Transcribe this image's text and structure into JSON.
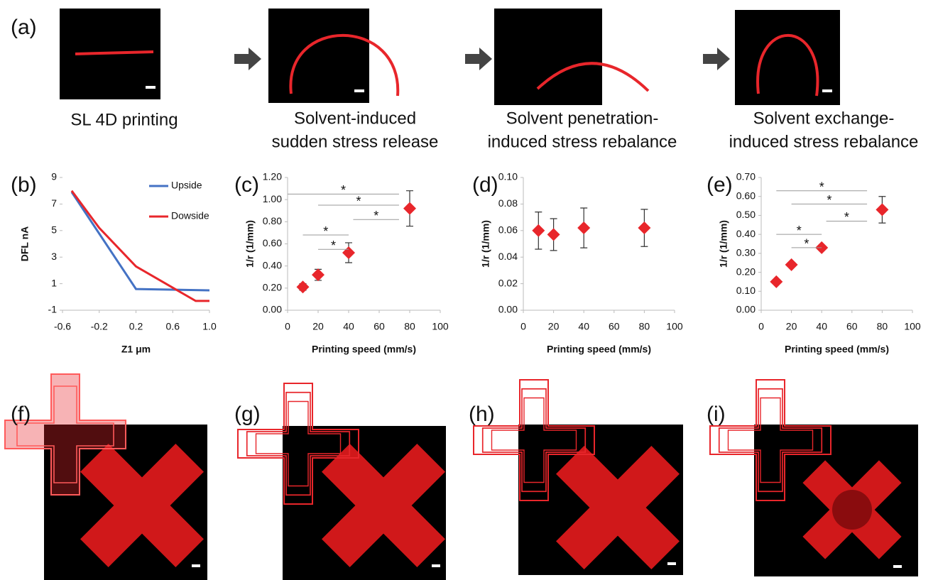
{
  "panel_labels": [
    "(a)",
    "(b)",
    "(c)",
    "(d)",
    "(e)",
    "(f)",
    "(g)",
    "(h)",
    "(i)"
  ],
  "captions": [
    [
      "SL 4D printing"
    ],
    [
      "Solvent-induced",
      "sudden stress release"
    ],
    [
      "Solvent penetration-",
      "induced stress rebalance"
    ],
    [
      "Solvent exchange-",
      "induced stress rebalance"
    ]
  ],
  "chart_data": [
    {
      "type": "line",
      "x_label": "Z1 μm",
      "y_label": "DFL nA",
      "legend": "upper right",
      "xlim": [
        -0.6,
        1.0
      ],
      "xticks": [
        -0.6,
        -0.2,
        0.2,
        0.6,
        {
          "value": 1.0,
          "label": "1.0"
        }
      ],
      "ylim": [
        -1,
        9
      ],
      "yticks": [
        -1,
        1,
        3,
        5,
        7,
        9
      ],
      "series": [
        {
          "name": "Upside",
          "color": "#4472c4",
          "x": [
            -0.5,
            0.2,
            1.0
          ],
          "values": [
            7.9,
            0.6,
            0.5
          ]
        },
        {
          "name": "Dowside",
          "color": "#e8262b",
          "x": [
            -0.5,
            -0.2,
            0.2,
            0.85,
            1.0
          ],
          "values": [
            8.0,
            5.2,
            2.3,
            -0.3,
            -0.3
          ]
        }
      ]
    },
    {
      "type": "scatter",
      "x_label": "Printing speed (mm/s)",
      "y_label": "1/r (1/mm)",
      "color": "#e8262b",
      "x": [
        10,
        20,
        40,
        80
      ],
      "values": [
        0.21,
        0.32,
        0.52,
        0.92
      ],
      "errors": [
        0.03,
        0.05,
        0.09,
        0.16
      ],
      "xlim": [
        0,
        100
      ],
      "xticks": [
        0,
        20,
        40,
        60,
        80,
        100
      ],
      "ylim": [
        0,
        1.2
      ],
      "yticks": [
        {
          "value": 0,
          "label": "0.00"
        },
        {
          "value": 0.2,
          "label": "0.20"
        },
        {
          "value": 0.4,
          "label": "0.40"
        },
        {
          "value": 0.6,
          "label": "0.60"
        },
        {
          "value": 0.8,
          "label": "0.80"
        },
        {
          "value": 1.0,
          "label": "1.00"
        },
        {
          "value": 1.2,
          "label": "1.20"
        }
      ],
      "annotations": [
        {
          "x": [
            0,
            73
          ],
          "y": 1.05,
          "label": "*"
        },
        {
          "x": [
            20,
            73
          ],
          "y": 0.95,
          "label": "*"
        },
        {
          "x": [
            43,
            73
          ],
          "y": 0.82,
          "label": "*"
        },
        {
          "x": [
            10,
            40
          ],
          "y": 0.68,
          "label": "*"
        },
        {
          "x": [
            20,
            40
          ],
          "y": 0.55,
          "label": "*"
        }
      ]
    },
    {
      "type": "scatter",
      "x_label": "Printing speed (mm/s)",
      "y_label": "1/r (1/mm)",
      "color": "#e8262b",
      "x": [
        10,
        20,
        40,
        80
      ],
      "values": [
        0.06,
        0.057,
        0.062,
        0.062
      ],
      "errors": [
        0.014,
        0.012,
        0.015,
        0.014
      ],
      "xlim": [
        0,
        100
      ],
      "xticks": [
        0,
        20,
        40,
        60,
        80,
        100
      ],
      "ylim": [
        0,
        0.1
      ],
      "yticks": [
        {
          "value": 0,
          "label": "0.00"
        },
        {
          "value": 0.02,
          "label": "0.02"
        },
        {
          "value": 0.04,
          "label": "0.04"
        },
        {
          "value": 0.06,
          "label": "0.06"
        },
        {
          "value": 0.08,
          "label": "0.08"
        },
        {
          "value": 0.1,
          "label": "0.10"
        }
      ]
    },
    {
      "type": "scatter",
      "x_label": "Printing speed (mm/s)",
      "y_label": "1/r (1/mm)",
      "color": "#e8262b",
      "x": [
        10,
        20,
        40,
        80
      ],
      "values": [
        0.15,
        0.24,
        0.33,
        0.53
      ],
      "errors": [
        0.01,
        0.01,
        0.01,
        0.07
      ],
      "xlim": [
        0,
        100
      ],
      "xticks": [
        0,
        20,
        40,
        60,
        80,
        100
      ],
      "ylim": [
        0,
        0.7
      ],
      "yticks": [
        {
          "value": 0,
          "label": "0.00"
        },
        {
          "value": 0.1,
          "label": "0.10"
        },
        {
          "value": 0.2,
          "label": "0.20"
        },
        {
          "value": 0.3,
          "label": "0.30"
        },
        {
          "value": 0.4,
          "label": "0.40"
        },
        {
          "value": 0.5,
          "label": "0.50"
        },
        {
          "value": 0.6,
          "label": "0.60"
        },
        {
          "value": 0.7,
          "label": "0.70"
        }
      ],
      "annotations": [
        {
          "x": [
            10,
            70
          ],
          "y": 0.63,
          "label": "*"
        },
        {
          "x": [
            20,
            70
          ],
          "y": 0.56,
          "label": "*"
        },
        {
          "x": [
            43,
            70
          ],
          "y": 0.47,
          "label": "*"
        },
        {
          "x": [
            10,
            40
          ],
          "y": 0.4,
          "label": "*"
        },
        {
          "x": [
            20,
            40
          ],
          "y": 0.33,
          "label": "*"
        }
      ]
    }
  ]
}
